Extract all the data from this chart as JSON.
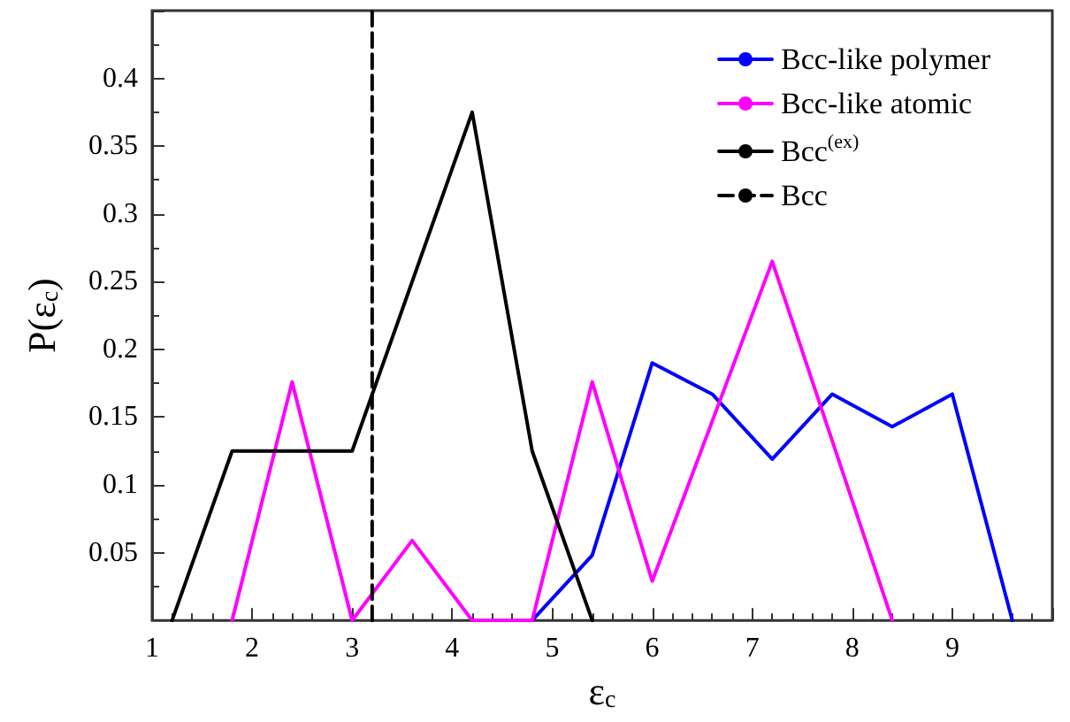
{
  "chart_data": {
    "type": "line",
    "xlabel": "ε$_{c}$",
    "ylabel": "P(ε$_{c}$)",
    "xlim": [
      1,
      10
    ],
    "xticks": [
      1,
      2,
      3,
      4,
      5,
      6,
      7,
      8,
      9
    ],
    "ylim": [
      0,
      0.45
    ],
    "yticks": [
      {
        "value": 0,
        "label": null
      },
      0.05,
      0.1,
      0.15,
      0.2,
      0.25,
      0.3,
      0.35,
      0.4
    ],
    "grid": false,
    "legend": "top right",
    "marker": "none",
    "series": [
      {
        "name": "Bcc-like polymer",
        "color": "#0000ff",
        "line_style": "solid",
        "x": [
          4.8,
          5.4,
          6.0,
          6.6,
          7.2,
          7.8,
          8.4,
          9.0,
          9.6
        ],
        "values": [
          0,
          0.048,
          0.19,
          0.167,
          0.119,
          0.167,
          0.143,
          0.167,
          0
        ]
      },
      {
        "name": "Bcc-like atomic",
        "color": "#ff00ff",
        "line_style": "solid",
        "x": [
          1.8,
          2.4,
          3.0,
          3.6,
          4.2,
          4.8,
          5.4,
          6.0,
          7.2,
          8.4
        ],
        "values": [
          0,
          0.176,
          0,
          0.059,
          0,
          0,
          0.176,
          0.029,
          0.265,
          0
        ]
      },
      {
        "name": "Bcc$^{(ex)}$",
        "color": "#000000",
        "line_style": "solid",
        "x": [
          1.2,
          1.8,
          3.0,
          4.2,
          4.8,
          5.4
        ],
        "values": [
          0,
          0.125,
          0.125,
          0.375,
          0.125,
          0
        ]
      },
      {
        "name": "Bcc",
        "color": "#000000",
        "line_style": "dashed",
        "x": [
          3.2,
          3.2
        ],
        "values": [
          0,
          0.45
        ]
      }
    ]
  }
}
